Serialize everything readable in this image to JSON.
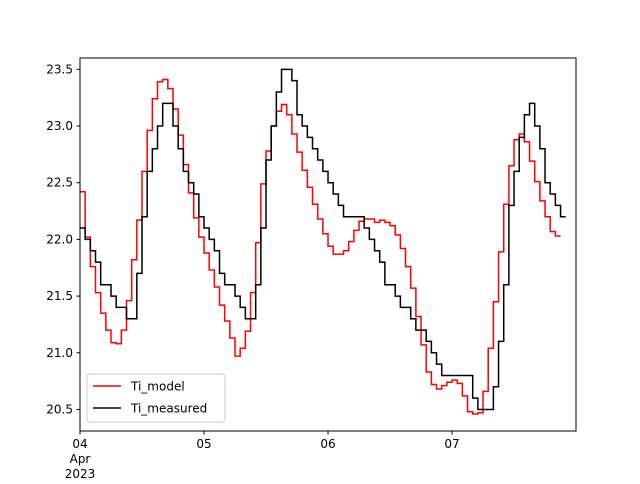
{
  "chart_data": {
    "type": "line",
    "step": "post",
    "x_start": "2023-04-04 00:00",
    "x_end": "2023-04-07 23:59",
    "x_ticks": [
      {
        "label": "04",
        "sublabel": "Apr\n2023",
        "day": 0
      },
      {
        "label": "05",
        "sublabel": "",
        "day": 1
      },
      {
        "label": "06",
        "sublabel": "",
        "day": 2
      },
      {
        "label": "07",
        "sublabel": "",
        "day": 3
      }
    ],
    "ylim": [
      20.31,
      23.6
    ],
    "y_ticks": [
      "20.5",
      "21.0",
      "21.5",
      "22.0",
      "22.5",
      "23.0",
      "23.5"
    ],
    "y_tick_values": [
      20.5,
      21.0,
      21.5,
      22.0,
      22.5,
      23.0,
      23.5
    ],
    "grid": false,
    "legend_position": "lower-left",
    "time_step_hours": 1,
    "series": [
      {
        "name": "Ti_model",
        "color": "#ff0000",
        "values": [
          22.42,
          22.02,
          21.76,
          21.53,
          21.35,
          21.2,
          21.09,
          21.08,
          21.2,
          21.46,
          21.82,
          22.17,
          22.6,
          22.96,
          23.24,
          23.39,
          23.41,
          23.33,
          23.15,
          22.92,
          22.66,
          22.41,
          22.19,
          22.02,
          21.88,
          21.73,
          21.58,
          21.42,
          21.28,
          21.13,
          20.97,
          21.04,
          21.19,
          21.53,
          21.97,
          22.49,
          22.78,
          23.0,
          23.13,
          23.19,
          23.1,
          22.93,
          22.77,
          22.61,
          22.46,
          22.31,
          22.18,
          22.05,
          21.94,
          21.87,
          21.87,
          21.9,
          21.98,
          22.08,
          22.16,
          22.18,
          22.18,
          22.15,
          22.17,
          22.15,
          22.12,
          22.04,
          21.92,
          21.76,
          21.57,
          21.32,
          21.07,
          20.83,
          20.72,
          20.68,
          20.71,
          20.74,
          20.76,
          20.73,
          20.62,
          20.48,
          20.46,
          20.47,
          20.66,
          21.04,
          21.45,
          21.89,
          22.31,
          22.65,
          22.88,
          22.93,
          22.86,
          22.69,
          22.51,
          22.34,
          22.2,
          22.07,
          22.03
        ]
      },
      {
        "name": "Ti_measured",
        "color": "#000000",
        "values": [
          22.1,
          22.0,
          21.9,
          21.8,
          21.6,
          21.6,
          21.5,
          21.4,
          21.4,
          21.3,
          21.3,
          21.7,
          22.2,
          22.6,
          22.8,
          23.0,
          23.2,
          23.2,
          23.0,
          22.8,
          22.6,
          22.5,
          22.4,
          22.2,
          22.1,
          22.0,
          21.9,
          21.7,
          21.6,
          21.6,
          21.5,
          21.4,
          21.3,
          21.3,
          21.6,
          22.1,
          22.7,
          23.0,
          23.3,
          23.5,
          23.5,
          23.4,
          23.1,
          23.0,
          22.9,
          22.8,
          22.7,
          22.6,
          22.5,
          22.4,
          22.3,
          22.2,
          22.2,
          22.2,
          22.2,
          22.1,
          22.0,
          21.9,
          21.8,
          21.6,
          21.6,
          21.5,
          21.4,
          21.4,
          21.3,
          21.2,
          21.2,
          21.1,
          21.0,
          20.9,
          20.8,
          20.8,
          20.8,
          20.8,
          20.8,
          20.8,
          20.6,
          20.5,
          20.5,
          20.5,
          20.7,
          21.1,
          21.6,
          22.3,
          22.6,
          22.9,
          23.1,
          23.2,
          23.0,
          22.8,
          22.5,
          22.4,
          22.3,
          22.2
        ]
      }
    ]
  }
}
